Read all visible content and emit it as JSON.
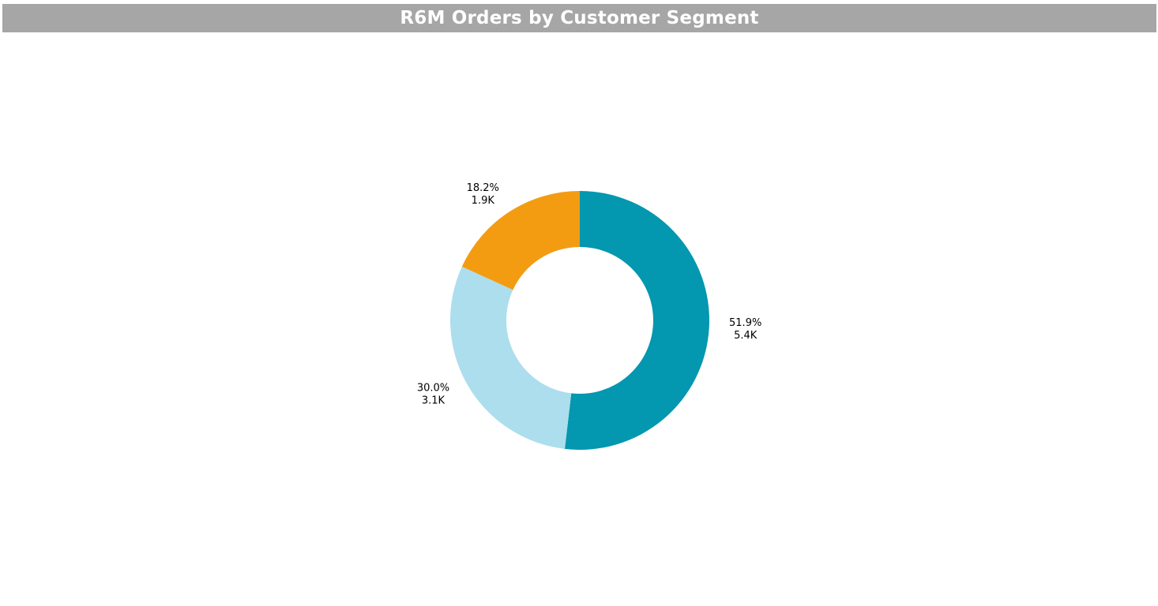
{
  "header": {
    "title": "R6M Orders by Customer Segment"
  },
  "chart_data": {
    "type": "pie",
    "variant": "donut",
    "title": "R6M Orders by Customer Segment",
    "start_angle_deg": 0,
    "direction": "clockwise",
    "slices": [
      {
        "percent": 51.9,
        "percent_label": "51.9%",
        "value_label": "5.4K",
        "value": 5400,
        "color": "#0397b0"
      },
      {
        "percent": 30.0,
        "percent_label": "30.0%",
        "value_label": "3.1K",
        "value": 3100,
        "color": "#acdeee"
      },
      {
        "percent": 18.2,
        "percent_label": "18.2%",
        "value_label": "1.9K",
        "value": 1900,
        "color": "#f39c12"
      }
    ],
    "legend": "none"
  }
}
